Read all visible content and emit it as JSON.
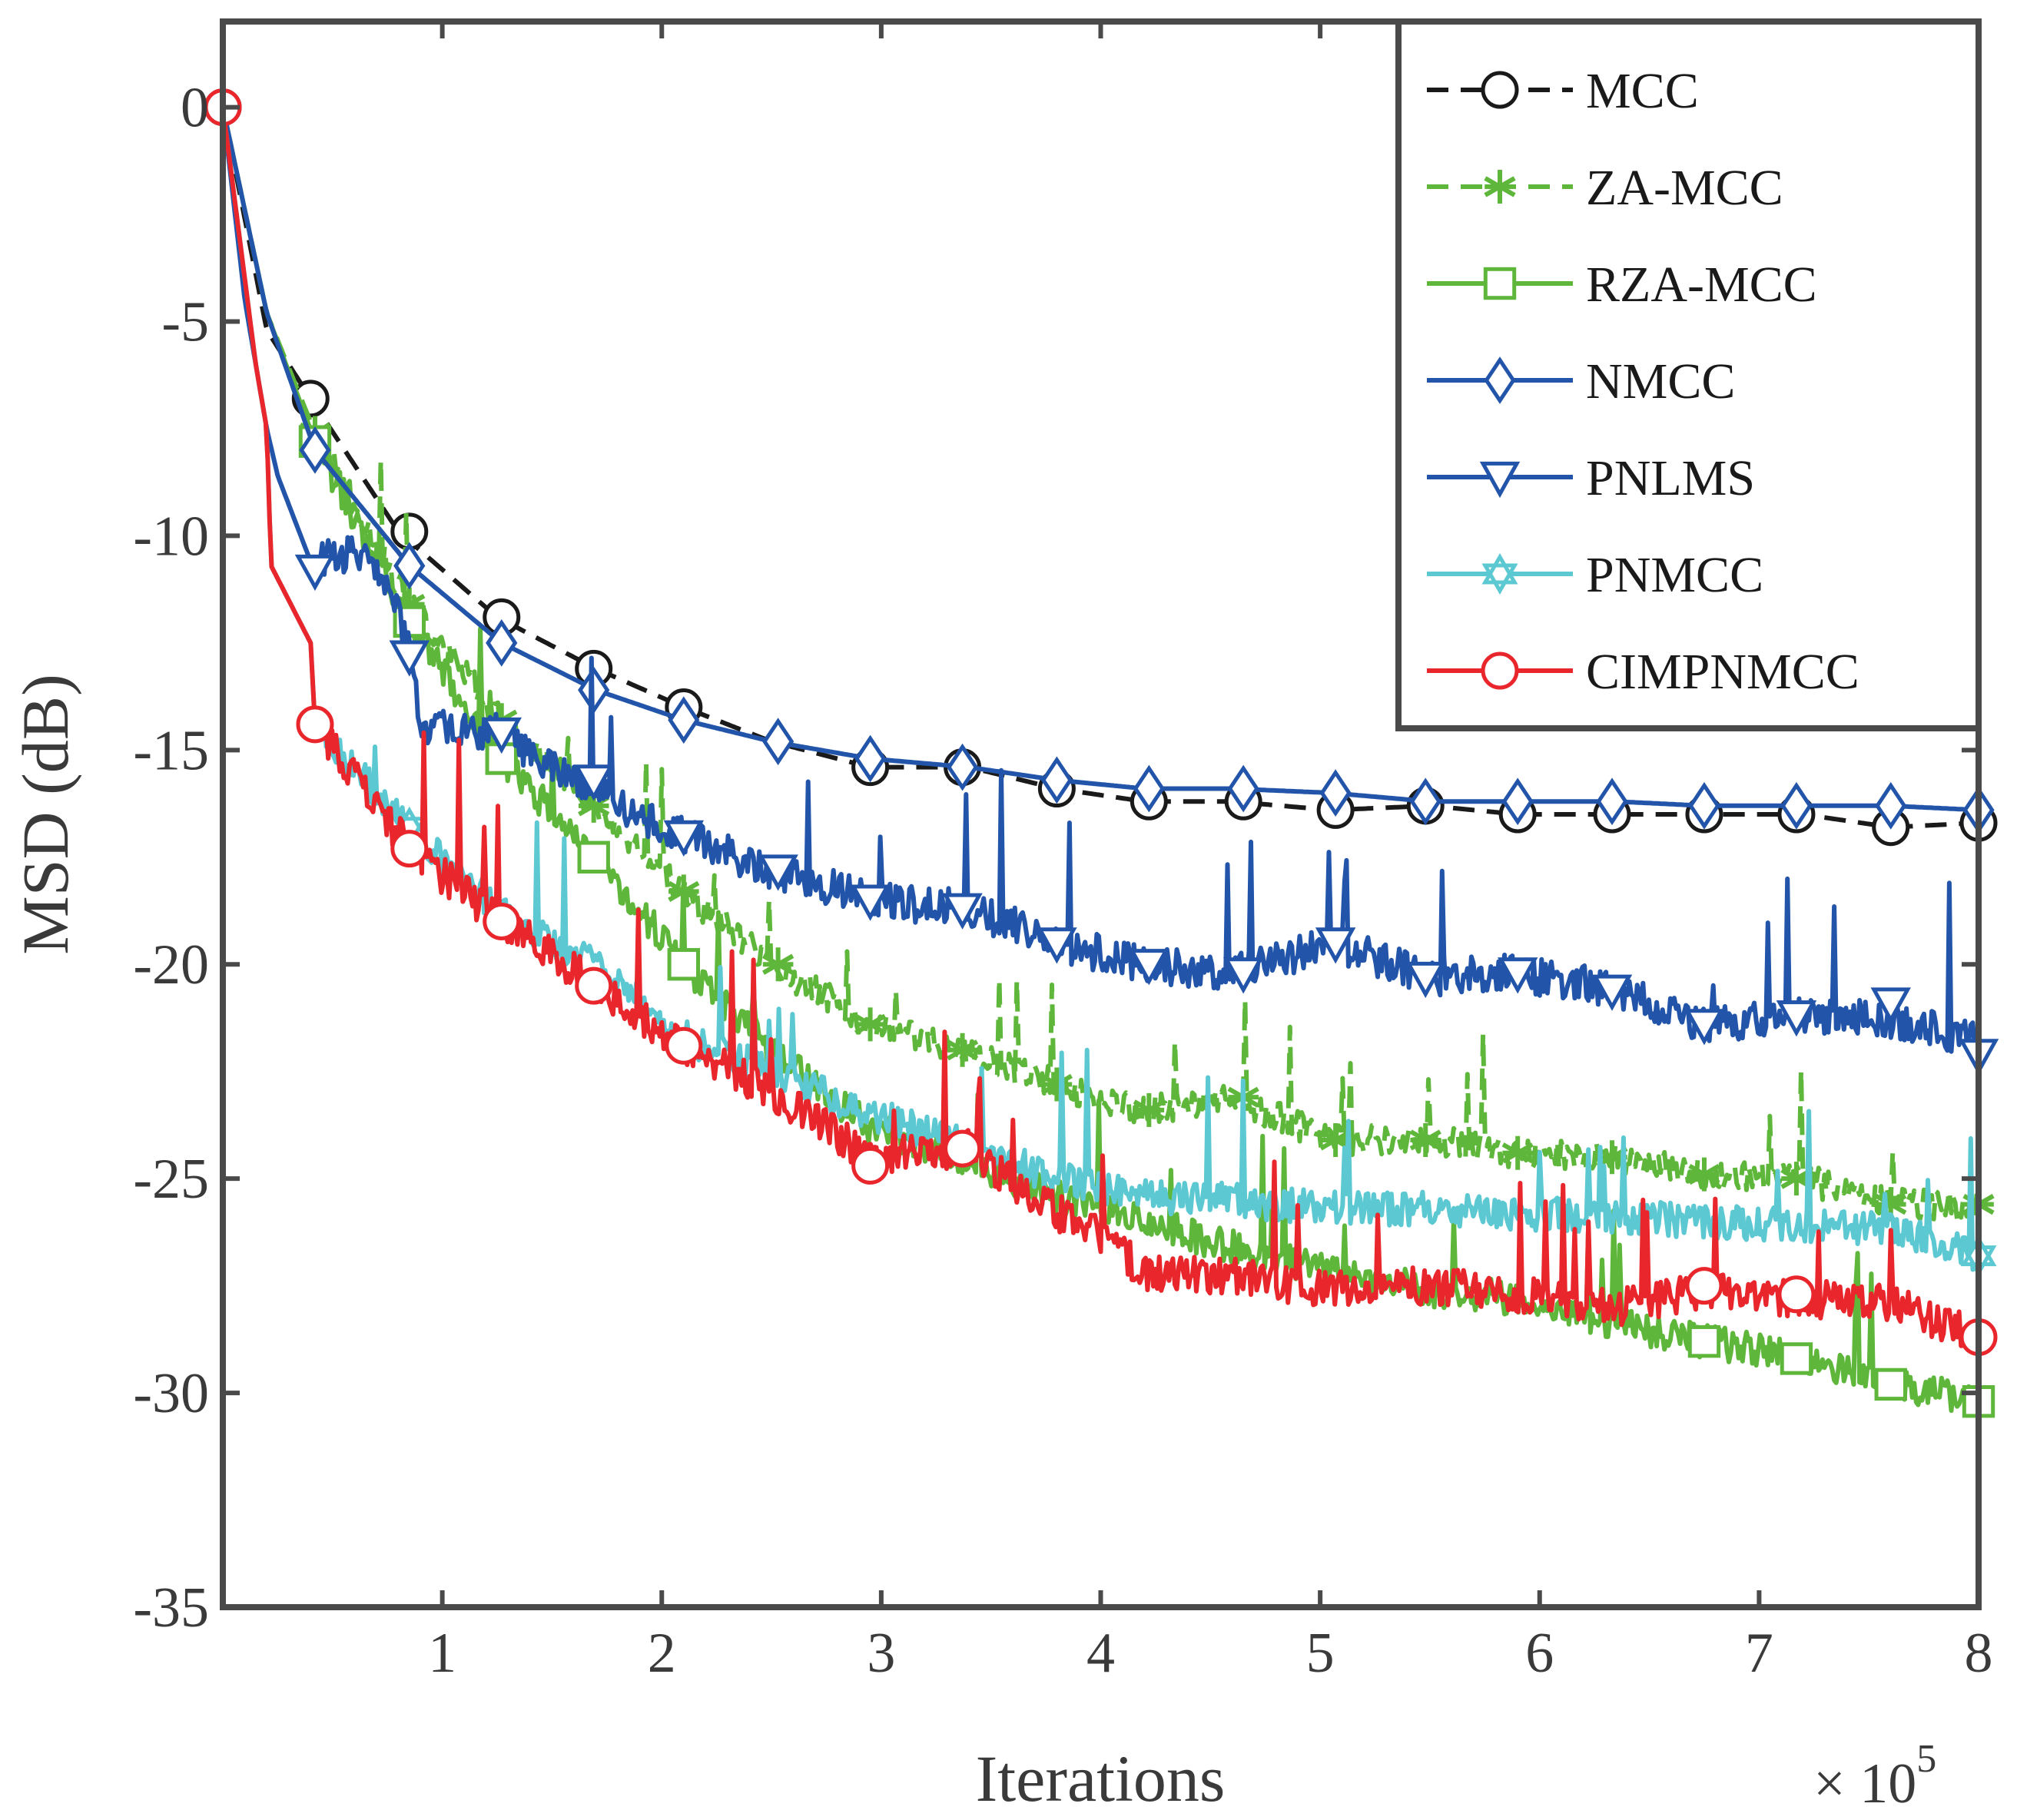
{
  "chart_data": {
    "type": "line",
    "title": "",
    "xlabel": "Iterations",
    "ylabel": "MSD (dB)",
    "x_multiplier": "× 10",
    "x_multiplier_exp": "5",
    "xlim": [
      0,
      8
    ],
    "ylim": [
      -35,
      2
    ],
    "xticks": [
      1,
      2,
      3,
      4,
      5,
      6,
      7,
      8
    ],
    "xtick_labels": [
      "1",
      "2",
      "3",
      "4",
      "5",
      "6",
      "7",
      "8"
    ],
    "yticks": [
      0,
      -5,
      -10,
      -15,
      -20,
      -25,
      -30,
      -35
    ],
    "ytick_labels": [
      "0",
      "-5",
      "-10",
      "-15",
      "-20",
      "-25",
      "-30",
      "-35"
    ],
    "grid": false,
    "legend_position": "top-right",
    "series": [
      {
        "name": "MCC",
        "color": "#1a1a1a",
        "dash": "dash",
        "marker": "circle",
        "x": [
          0,
          0.2,
          0.4,
          0.8,
          1.25,
          1.7,
          2.1,
          2.5,
          2.95,
          3.4,
          3.8,
          4.2,
          4.6,
          5.05,
          5.5,
          5.9,
          6.35,
          6.75,
          7.2,
          7.6,
          8.0
        ],
        "y": [
          0,
          -5.2,
          -6.8,
          -9.9,
          -11.9,
          -13.1,
          -14.0,
          -14.8,
          -15.4,
          -15.4,
          -15.9,
          -16.2,
          -16.2,
          -16.4,
          -16.3,
          -16.5,
          -16.5,
          -16.5,
          -16.5,
          -16.8,
          -16.7
        ],
        "markers_x": [
          0,
          0.4,
          0.85,
          1.27,
          1.69,
          2.1,
          2.95,
          3.37,
          3.8,
          4.22,
          4.65,
          5.07,
          5.48,
          5.9,
          6.33,
          6.75,
          7.17,
          7.6,
          8.0
        ],
        "markers_y": [
          0,
          -6.8,
          -9.9,
          -11.9,
          -13.1,
          -14.0,
          -15.4,
          -15.4,
          -15.9,
          -16.2,
          -16.2,
          -16.4,
          -16.3,
          -16.5,
          -16.5,
          -16.5,
          -16.5,
          -16.8,
          -16.7
        ]
      },
      {
        "name": "ZA-MCC",
        "color": "#5eb73a",
        "dash": "dash",
        "marker": "asterisk",
        "x": [
          0,
          0.2,
          0.42,
          0.85,
          1.27,
          1.7,
          2.1,
          2.5,
          2.95,
          3.4,
          3.8,
          4.2,
          4.6,
          5.05,
          5.5,
          5.9,
          6.35,
          6.75,
          7.2,
          7.6,
          8.0
        ],
        "y": [
          0,
          -4.8,
          -7.6,
          -11.6,
          -14.3,
          -16.3,
          -18.3,
          -20.0,
          -21.4,
          -22.0,
          -22.8,
          -23.4,
          -23.1,
          -24.1,
          -24.1,
          -24.4,
          -24.5,
          -24.9,
          -25.0,
          -25.6,
          -25.6
        ],
        "markers_x": [
          0.42,
          0.85,
          1.27,
          1.69,
          2.1,
          2.53,
          2.95,
          3.37,
          3.8,
          4.22,
          4.65,
          5.07,
          5.48,
          5.9,
          6.33,
          6.75,
          7.17,
          7.6,
          8.0
        ],
        "markers_y": [
          -7.6,
          -11.6,
          -14.3,
          -16.3,
          -18.3,
          -20.0,
          -21.4,
          -22.0,
          -22.8,
          -23.4,
          -23.1,
          -24.1,
          -24.1,
          -24.4,
          -24.5,
          -24.9,
          -25.0,
          -25.6,
          -25.6
        ],
        "noise": 0.45
      },
      {
        "name": "RZA-MCC",
        "color": "#5eb73a",
        "dash": "solid",
        "marker": "square",
        "x": [
          0,
          0.2,
          0.42,
          0.85,
          1.27,
          1.7,
          2.1,
          2.5,
          2.95,
          3.4,
          3.8,
          4.2,
          4.6,
          5.05,
          5.5,
          5.9,
          6.35,
          6.75,
          7.2,
          7.6,
          8.0
        ],
        "y": [
          0,
          -4.8,
          -7.8,
          -12.0,
          -15.2,
          -17.5,
          -20.0,
          -22.0,
          -23.8,
          -24.6,
          -25.4,
          -26.0,
          -26.6,
          -27.2,
          -27.6,
          -27.8,
          -28.4,
          -28.8,
          -29.2,
          -29.8,
          -30.2
        ],
        "markers_x": [
          0.42,
          0.85,
          1.27,
          1.69,
          2.1,
          6.75,
          7.17,
          7.6,
          8.0
        ],
        "markers_y": [
          -7.8,
          -12.0,
          -15.2,
          -17.5,
          -20.0,
          -28.8,
          -29.2,
          -29.8,
          -30.2
        ],
        "noise": 0.5
      },
      {
        "name": "NMCC",
        "color": "#2255aa",
        "dash": "solid",
        "marker": "diamond",
        "x": [
          0,
          0.2,
          0.42,
          0.85,
          1.27,
          1.7,
          2.1,
          2.5,
          2.95,
          3.4,
          3.8,
          4.2,
          4.6,
          5.05,
          5.5,
          5.9,
          6.35,
          6.75,
          7.2,
          7.6,
          8.0
        ],
        "y": [
          0,
          -4.8,
          -8.0,
          -10.7,
          -12.5,
          -13.6,
          -14.3,
          -14.8,
          -15.2,
          -15.4,
          -15.7,
          -15.9,
          -15.9,
          -16.0,
          -16.2,
          -16.2,
          -16.2,
          -16.3,
          -16.3,
          -16.3,
          -16.4
        ],
        "markers_x": [
          0.42,
          0.85,
          1.27,
          1.69,
          2.1,
          2.53,
          2.95,
          3.37,
          3.8,
          4.22,
          4.65,
          5.07,
          5.48,
          5.9,
          6.33,
          6.75,
          7.17,
          7.6,
          8.0
        ],
        "markers_y": [
          -8.0,
          -10.7,
          -12.5,
          -13.6,
          -14.3,
          -14.8,
          -15.2,
          -15.4,
          -15.7,
          -15.9,
          -15.9,
          -16.0,
          -16.2,
          -16.2,
          -16.2,
          -16.3,
          -16.3,
          -16.3,
          -16.4
        ]
      },
      {
        "name": "PNLMS",
        "color": "#2255aa",
        "dash": "solid",
        "marker": "triangle-down",
        "x": [
          0,
          0.1,
          0.2,
          0.25,
          0.4,
          0.6,
          0.75,
          0.87,
          0.9,
          1.27,
          1.7,
          2.1,
          2.5,
          2.95,
          3.4,
          3.8,
          4.2,
          4.6,
          5.05,
          5.5,
          5.9,
          6.35,
          6.75,
          7.2,
          7.6,
          8.0
        ],
        "y": [
          0,
          -4.5,
          -7.5,
          -8.6,
          -10.6,
          -10.4,
          -11.2,
          -12.8,
          -14.4,
          -14.6,
          -16.0,
          -17.0,
          -17.8,
          -18.5,
          -18.7,
          -19.5,
          -20.0,
          -20.2,
          -19.5,
          -20.3,
          -20.2,
          -20.6,
          -21.4,
          -21.2,
          -21.3,
          -21.8
        ],
        "markers_x": [
          0.42,
          0.85,
          1.27,
          1.69,
          2.1,
          2.53,
          2.95,
          3.37,
          3.8,
          4.22,
          4.65,
          5.07,
          5.48,
          5.9,
          6.33,
          6.75,
          7.17,
          7.6,
          8.0
        ],
        "markers_y": [
          -10.8,
          -12.8,
          -14.6,
          -15.7,
          -17.0,
          -17.8,
          -18.5,
          -18.7,
          -19.5,
          -20.0,
          -20.2,
          -19.5,
          -20.3,
          -20.2,
          -20.6,
          -21.4,
          -21.2,
          -20.9,
          -22.1
        ],
        "noise": 0.55
      },
      {
        "name": "PNMCC",
        "color": "#5bc8d2",
        "dash": "solid",
        "marker": "hexagram",
        "x": [
          0,
          0.15,
          0.2,
          0.22,
          0.4,
          0.42,
          0.85,
          1.27,
          1.7,
          2.1,
          2.5,
          2.95,
          3.4,
          3.8,
          4.2,
          4.6,
          5.05,
          5.5,
          5.9,
          6.35,
          6.75,
          7.2,
          7.6,
          8.0
        ],
        "y": [
          0,
          -6.0,
          -7.5,
          -10.7,
          -12.5,
          -14.4,
          -16.8,
          -18.8,
          -20.0,
          -21.7,
          -22.5,
          -23.5,
          -24.2,
          -25.0,
          -25.4,
          -25.5,
          -25.7,
          -25.7,
          -25.8,
          -25.9,
          -26.0,
          -26.1,
          -26.2,
          -26.8
        ],
        "markers_x": [
          0.85,
          8.0
        ],
        "markers_y": [
          -16.8,
          -26.8
        ],
        "noise": 0.5
      },
      {
        "name": "CIMPNMCC",
        "color": "#e8262b",
        "dash": "solid",
        "marker": "circle",
        "x": [
          0,
          0.15,
          0.2,
          0.22,
          0.4,
          0.42,
          0.85,
          1.27,
          1.7,
          2.1,
          2.5,
          2.95,
          3.4,
          3.8,
          4.0,
          4.2,
          4.6,
          5.05,
          5.5,
          5.9,
          6.35,
          6.75,
          7.2,
          7.6,
          8.0
        ],
        "y": [
          0,
          -6.0,
          -7.5,
          -10.7,
          -12.5,
          -14.4,
          -17.3,
          -19.0,
          -20.5,
          -21.9,
          -23.0,
          -24.5,
          -24.3,
          -25.8,
          -26.3,
          -27.2,
          -27.3,
          -27.6,
          -27.5,
          -27.7,
          -28.0,
          -27.6,
          -27.8,
          -27.9,
          -28.7
        ],
        "markers_x": [
          0,
          0.42,
          0.85,
          1.27,
          1.69,
          2.1,
          2.95,
          3.37,
          6.75,
          7.17,
          8.0
        ],
        "markers_y": [
          0,
          -14.4,
          -17.3,
          -19.0,
          -20.5,
          -21.9,
          -24.7,
          -24.3,
          -27.5,
          -27.7,
          -28.7
        ],
        "noise": 0.55
      }
    ]
  }
}
